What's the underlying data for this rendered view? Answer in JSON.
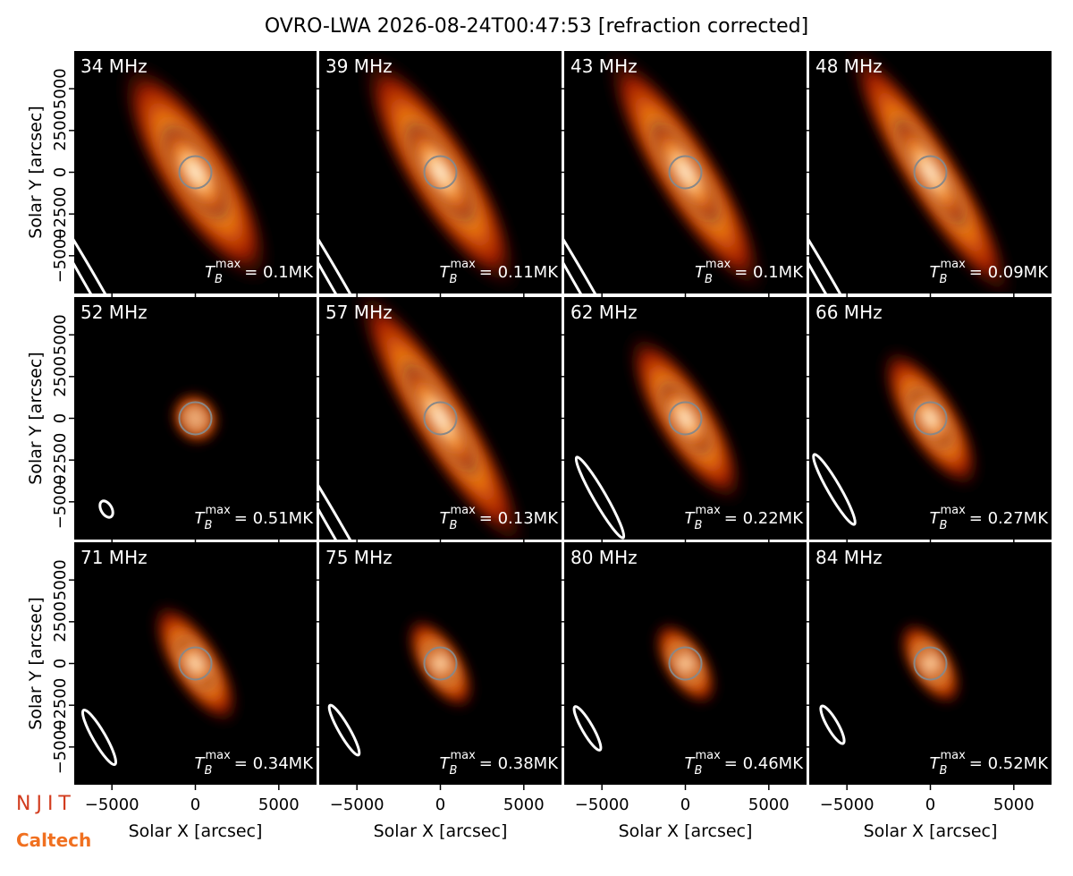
{
  "chart_data": {
    "type": "image-grid",
    "title": "OVRO-LWA 2026-08-24T00:47:53 [refraction corrected]",
    "x_label": "Solar X [arcsec]",
    "y_label": "Solar Y [arcsec]",
    "xlim": [
      -7260,
      7260
    ],
    "ylim": [
      -7260,
      7260
    ],
    "xticks": [
      {
        "value": -5000,
        "label": "−5000"
      },
      0,
      5000
    ],
    "yticks": [
      {
        "value": -5000,
        "label": "−5000"
      },
      {
        "value": -2500,
        "label": "−2500"
      },
      0,
      2500,
      5000
    ],
    "tb_symbol": "T",
    "tb_subscript": "B",
    "tb_superscript": "max",
    "panels": [
      {
        "label": "34 MHz",
        "tb_value": "= 0.1MK"
      },
      {
        "label": "39 MHz",
        "tb_value": "= 0.11MK"
      },
      {
        "label": "43 MHz",
        "tb_value": "= 0.1MK"
      },
      {
        "label": "48 MHz",
        "tb_value": "= 0.09MK"
      },
      {
        "label": "52 MHz",
        "tb_value": "= 0.51MK"
      },
      {
        "label": "57 MHz",
        "tb_value": "= 0.13MK"
      },
      {
        "label": "62 MHz",
        "tb_value": "= 0.22MK"
      },
      {
        "label": "66 MHz",
        "tb_value": "= 0.27MK"
      },
      {
        "label": "71 MHz",
        "tb_value": "= 0.34MK"
      },
      {
        "label": "75 MHz",
        "tb_value": "= 0.38MK"
      },
      {
        "label": "80 MHz",
        "tb_value": "= 0.46MK"
      },
      {
        "label": "84 MHz",
        "tb_value": "= 0.52MK"
      }
    ],
    "logos": [
      "NJIT",
      "Caltech"
    ]
  }
}
